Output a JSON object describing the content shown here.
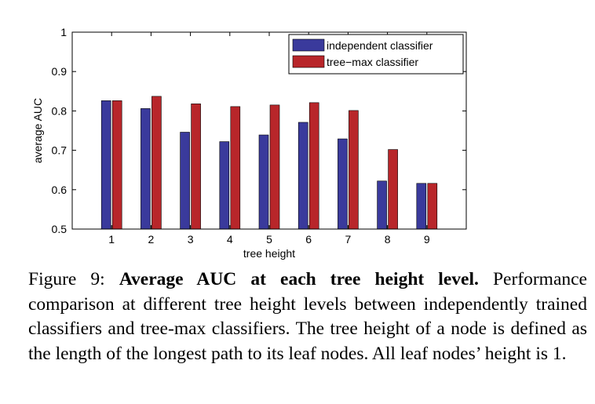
{
  "chart_data": {
    "type": "bar",
    "categories": [
      "1",
      "2",
      "3",
      "4",
      "5",
      "6",
      "7",
      "8",
      "9"
    ],
    "series": [
      {
        "name": "independent classifier",
        "color": "#3a3a9c",
        "values": [
          0.826,
          0.806,
          0.746,
          0.722,
          0.739,
          0.771,
          0.729,
          0.622,
          0.616
        ]
      },
      {
        "name": "tree−max classifier",
        "color": "#b8262a",
        "values": [
          0.826,
          0.837,
          0.818,
          0.811,
          0.815,
          0.821,
          0.801,
          0.702,
          0.616
        ]
      }
    ],
    "xlabel": "tree height",
    "ylabel": "average AUC",
    "ylim": [
      0.5,
      1
    ],
    "yticks": [
      0.5,
      0.6,
      0.7,
      0.8,
      0.9,
      1
    ],
    "ytick_labels": [
      "0.5",
      "0.6",
      "0.7",
      "0.8",
      "0.9",
      "1"
    ],
    "legend_position": "top-right",
    "grid": false
  },
  "caption": {
    "prefix": "Figure 9: ",
    "bold": "Average AUC at each tree height level.",
    "text": " Performance comparison at different tree height levels between independently trained classifiers and tree-max classifiers.  The tree height of a node is defined as the length of the longest path to its leaf nodes. All leaf nodes’ height is 1."
  }
}
